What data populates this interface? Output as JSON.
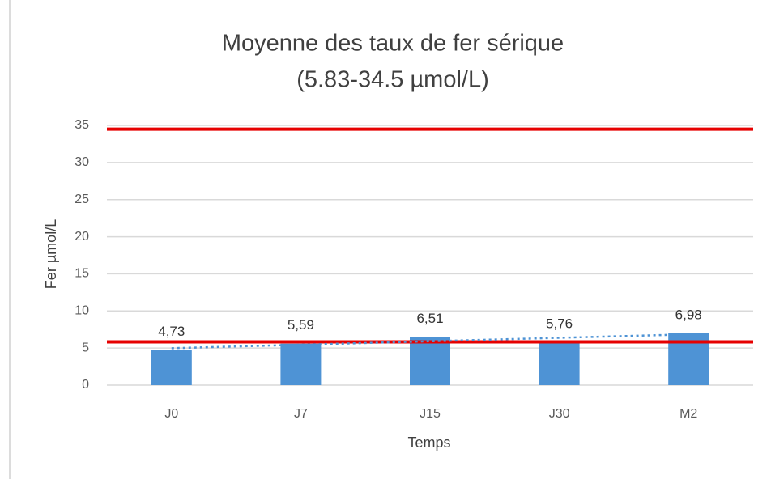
{
  "chart_data": {
    "type": "bar",
    "title": "Moyenne des taux de fer sérique",
    "subtitle": "(5.83-34.5 µmol/L)",
    "x_label": "Temps",
    "y_label": "Fer µmol/L",
    "categories": [
      "J0",
      "J7",
      "J15",
      "J30",
      "M2"
    ],
    "values": [
      4.73,
      5.59,
      6.51,
      5.76,
      6.98
    ],
    "value_labels": [
      "4,73",
      "5,59",
      "6,51",
      "5,76",
      "6,98"
    ],
    "color": "#4e93d5",
    "ylim": [
      0,
      35
    ],
    "yticks": [
      0,
      5,
      10,
      15,
      20,
      25,
      30,
      35
    ],
    "grid": true,
    "reference_lines": [
      5.83,
      34.5
    ],
    "reference_color": "#e60000",
    "trendline": "linear",
    "trendline_color": "#4e93d5"
  }
}
